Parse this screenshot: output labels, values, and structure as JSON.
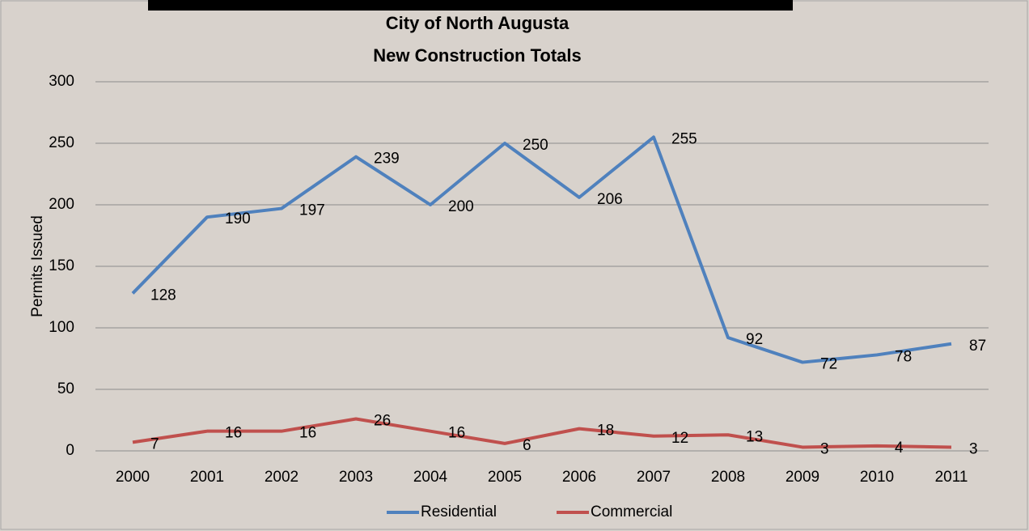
{
  "chart_data": {
    "type": "line",
    "title": "City of North Augusta",
    "subtitle": "New Construction Totals",
    "y_label": "Permits Issued",
    "categories": [
      "2000",
      "2001",
      "2002",
      "2003",
      "2004",
      "2005",
      "2006",
      "2007",
      "2008",
      "2009",
      "2010",
      "2011"
    ],
    "series": [
      {
        "name": "Residential",
        "color": "#4f81bd",
        "values": [
          128,
          190,
          197,
          239,
          200,
          250,
          206,
          255,
          92,
          72,
          78,
          87
        ]
      },
      {
        "name": "Commercial",
        "color": "#c0504d",
        "values": [
          7,
          16,
          16,
          26,
          16,
          6,
          18,
          12,
          13,
          3,
          4,
          3
        ]
      }
    ],
    "ylim": [
      0,
      300
    ],
    "yticks": [
      0,
      50,
      100,
      150,
      200,
      250,
      300
    ],
    "grid": true,
    "legend": "bottom"
  }
}
